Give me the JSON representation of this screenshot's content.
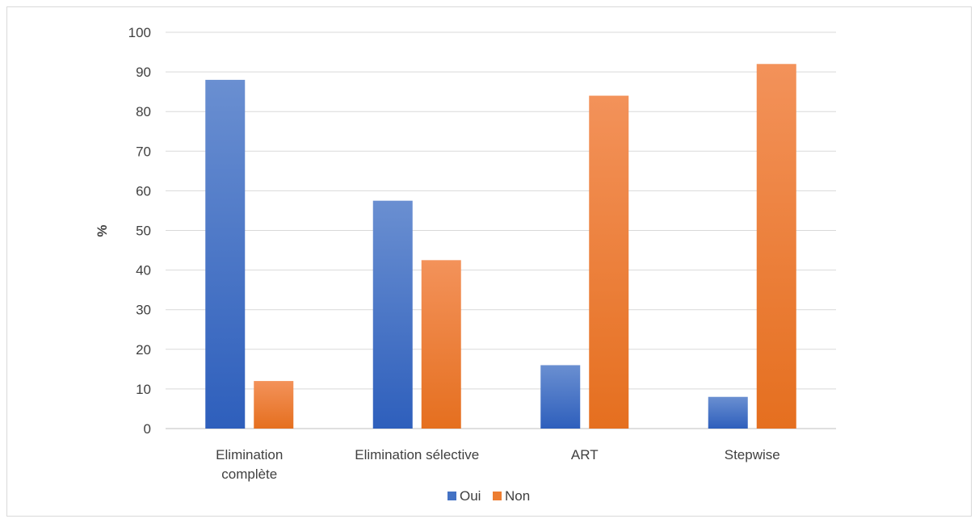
{
  "chart_data": {
    "type": "bar",
    "title": "",
    "xlabel": "",
    "ylabel": "%",
    "ylim": [
      0,
      100
    ],
    "yticks": [
      0,
      10,
      20,
      30,
      40,
      50,
      60,
      70,
      80,
      90,
      100
    ],
    "grid": true,
    "legend_position": "bottom",
    "categories": [
      [
        "Elimination",
        "complète"
      ],
      [
        "Elimination sélective"
      ],
      [
        "ART"
      ],
      [
        "Stepwise"
      ]
    ],
    "series": [
      {
        "name": "Oui",
        "color": "#4472c4",
        "values": [
          88,
          57.5,
          16,
          8
        ]
      },
      {
        "name": "Non",
        "color": "#ed7d31",
        "values": [
          12,
          42.5,
          84,
          92
        ]
      }
    ]
  }
}
